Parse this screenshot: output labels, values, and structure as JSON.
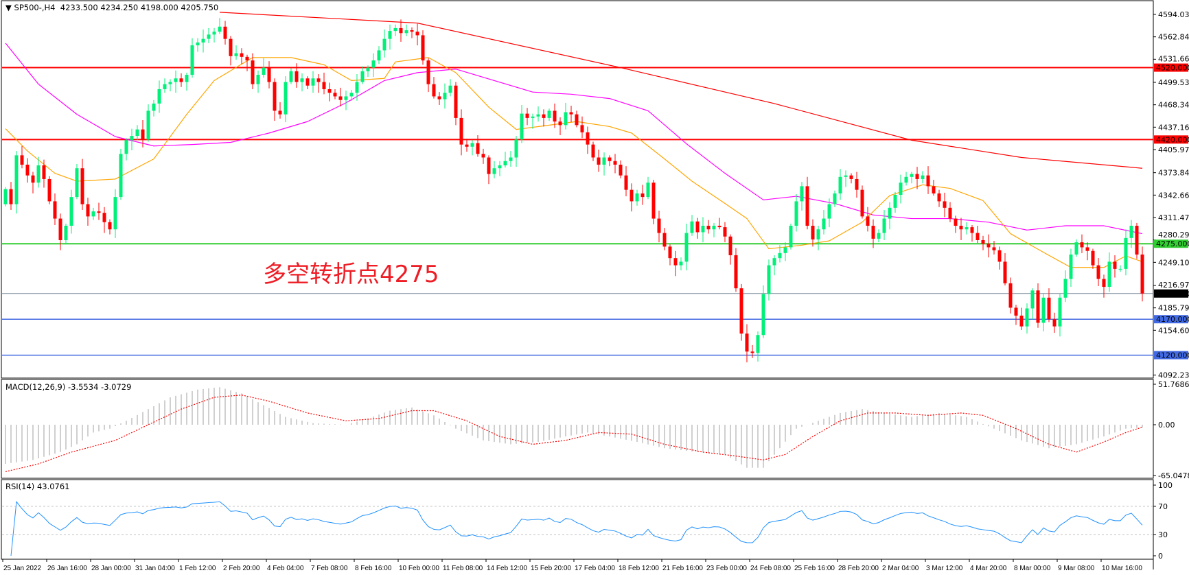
{
  "header": {
    "symbol": "SP500-,H4",
    "ohlc_text": "4233.500 4234.250 4198.000 4205.750"
  },
  "annotation": "多空转折点4275",
  "macd_label": "MACD(12,26,9) -3.5534 -3.0729",
  "rsi_label": "RSI(14) 43.0761",
  "colors": {
    "bull": "#00f07a",
    "bear": "#ff0000",
    "ma_fast": "#ffa500",
    "ma_mid": "#ff00ff",
    "ma_slow": "#ff0000",
    "resistance": "#ff0000",
    "pivot": "#32cd32",
    "support": "#4169e1",
    "price_line": "#778899",
    "macd_hist": "#c0c0c0",
    "macd_signal": "#ff0000",
    "rsi": "#1e90ff"
  },
  "chart_data": {
    "type": "candlestick",
    "price_axis": {
      "min": 4092.235,
      "max": 4594.03,
      "ticks": [
        "4594.030",
        "4562.845",
        "4531.660",
        "4499.530",
        "4468.345",
        "4437.160",
        "4405.975",
        "4373.845",
        "4342.660",
        "4311.475",
        "4280.290",
        "4249.105",
        "4216.975",
        "4185.790",
        "4154.605",
        "4092.235"
      ]
    },
    "time_labels": [
      "25 Jan 2022",
      "26 Jan 16:00",
      "28 Jan 00:00",
      "31 Jan 04:00",
      "1 Feb 12:00",
      "2 Feb 20:00",
      "4 Feb 04:00",
      "7 Feb 08:00",
      "8 Feb 16:00",
      "10 Feb 00:00",
      "11 Feb 08:00",
      "14 Feb 12:00",
      "15 Feb 20:00",
      "17 Feb 04:00",
      "18 Feb 12:00",
      "21 Feb 16:00",
      "23 Feb 00:00",
      "24 Feb 08:00",
      "25 Feb 16:00",
      "28 Feb 20:00",
      "2 Mar 04:00",
      "3 Mar 12:00",
      "4 Mar 20:00",
      "8 Mar 00:00",
      "9 Mar 08:00",
      "10 Mar 16:00"
    ],
    "first_open": 4330,
    "closes": [
      4351,
      4330,
      4398,
      4385,
      4370,
      4360,
      4384,
      4365,
      4334,
      4310,
      4280,
      4300,
      4340,
      4380,
      4330,
      4313,
      4320,
      4318,
      4305,
      4295,
      4340,
      4400,
      4419,
      4425,
      4434,
      4420,
      4460,
      4470,
      4490,
      4497,
      4500,
      4505,
      4500,
      4510,
      4551,
      4555,
      4560,
      4566,
      4570,
      4577,
      4560,
      4536,
      4540,
      4535,
      4530,
      4497,
      4510,
      4520,
      4500,
      4460,
      4455,
      4500,
      4515,
      4500,
      4505,
      4495,
      4505,
      4500,
      4490,
      4485,
      4480,
      4475,
      4480,
      4485,
      4500,
      4515,
      4520,
      4530,
      4544,
      4560,
      4571,
      4575,
      4568,
      4572,
      4570,
      4565,
      4530,
      4497,
      4480,
      4476,
      4485,
      4495,
      4450,
      4413,
      4410,
      4415,
      4400,
      4395,
      4372,
      4380,
      4384,
      4390,
      4395,
      4420,
      4456,
      4450,
      4452,
      4455,
      4450,
      4460,
      4445,
      4440,
      4458,
      4455,
      4440,
      4430,
      4413,
      4395,
      4385,
      4395,
      4390,
      4385,
      4370,
      4350,
      4334,
      4345,
      4340,
      4360,
      4310,
      4290,
      4271,
      4255,
      4245,
      4250,
      4290,
      4306,
      4291,
      4300,
      4295,
      4300,
      4298,
      4285,
      4259,
      4213,
      4150,
      4125,
      4123,
      4148,
      4205,
      4245,
      4255,
      4262,
      4270,
      4300,
      4334,
      4355,
      4300,
      4281,
      4295,
      4310,
      4330,
      4345,
      4368,
      4370,
      4365,
      4350,
      4313,
      4300,
      4282,
      4290,
      4310,
      4325,
      4343,
      4360,
      4368,
      4372,
      4365,
      4370,
      4355,
      4345,
      4334,
      4325,
      4310,
      4300,
      4295,
      4298,
      4290,
      4280,
      4275,
      4270,
      4266,
      4250,
      4220,
      4186,
      4175,
      4160,
      4185,
      4210,
      4165,
      4200,
      4170,
      4160,
      4200,
      4226,
      4260,
      4277,
      4270,
      4265,
      4245,
      4226,
      4215,
      4250,
      4240,
      4240,
      4283,
      4300,
      4260,
      4205.75
    ],
    "ma_fast": [
      [
        0,
        4435
      ],
      [
        4,
        4404
      ],
      [
        9,
        4373
      ],
      [
        13,
        4362
      ],
      [
        20,
        4365
      ],
      [
        27,
        4393
      ],
      [
        33,
        4455
      ],
      [
        38,
        4502
      ],
      [
        45,
        4534
      ],
      [
        52,
        4534
      ],
      [
        58,
        4524
      ],
      [
        63,
        4502
      ],
      [
        69,
        4505
      ],
      [
        71,
        4528
      ],
      [
        77,
        4534
      ],
      [
        82,
        4513
      ],
      [
        88,
        4465
      ],
      [
        93,
        4434
      ],
      [
        99,
        4440
      ],
      [
        104,
        4445
      ],
      [
        110,
        4438
      ],
      [
        114,
        4429
      ],
      [
        120,
        4393
      ],
      [
        125,
        4362
      ],
      [
        131,
        4331
      ],
      [
        135,
        4310
      ],
      [
        139,
        4268
      ],
      [
        145,
        4273
      ],
      [
        150,
        4279
      ],
      [
        156,
        4305
      ],
      [
        161,
        4342
      ],
      [
        167,
        4357
      ],
      [
        172,
        4352
      ],
      [
        178,
        4335
      ],
      [
        183,
        4289
      ],
      [
        189,
        4263
      ],
      [
        194,
        4242
      ],
      [
        200,
        4242
      ],
      [
        204,
        4258
      ],
      [
        207,
        4250
      ]
    ],
    "ma_mid": [
      [
        0,
        4554
      ],
      [
        6,
        4497
      ],
      [
        13,
        4455
      ],
      [
        20,
        4424
      ],
      [
        27,
        4411
      ],
      [
        34,
        4413
      ],
      [
        41,
        4416
      ],
      [
        48,
        4429
      ],
      [
        55,
        4445
      ],
      [
        62,
        4471
      ],
      [
        69,
        4502
      ],
      [
        75,
        4513
      ],
      [
        82,
        4518
      ],
      [
        89,
        4502
      ],
      [
        96,
        4486
      ],
      [
        103,
        4483
      ],
      [
        110,
        4477
      ],
      [
        117,
        4460
      ],
      [
        124,
        4414
      ],
      [
        131,
        4373
      ],
      [
        138,
        4336
      ],
      [
        144,
        4341
      ],
      [
        151,
        4331
      ],
      [
        158,
        4315
      ],
      [
        165,
        4310
      ],
      [
        172,
        4310
      ],
      [
        179,
        4305
      ],
      [
        186,
        4294
      ],
      [
        193,
        4300
      ],
      [
        200,
        4300
      ],
      [
        207,
        4289
      ]
    ],
    "ma_slow": [
      [
        39,
        4597
      ],
      [
        75,
        4582
      ],
      [
        112,
        4520
      ],
      [
        140,
        4470
      ],
      [
        165,
        4419
      ],
      [
        185,
        4395
      ],
      [
        207,
        4380
      ]
    ],
    "levels": [
      {
        "price": 4520,
        "label": "4520.000",
        "kind": "resistance"
      },
      {
        "price": 4420,
        "label": "4420.000",
        "kind": "resistance"
      },
      {
        "price": 4275,
        "label": "4275.000",
        "kind": "pivot"
      },
      {
        "price": 4170,
        "label": "4170.000",
        "kind": "support"
      },
      {
        "price": 4120,
        "label": "4120.000",
        "kind": "support"
      }
    ],
    "current_price": {
      "price": 4205.75,
      "label": "4205.750"
    },
    "macd": {
      "axis": {
        "max": 51.7686,
        "min": -65.0478,
        "ticks": [
          "51.7686",
          "0.00",
          "-65.0478"
        ]
      },
      "main": [
        [
          0,
          -50
        ],
        [
          5,
          -45
        ],
        [
          10,
          -35
        ],
        [
          13,
          -25
        ],
        [
          16,
          -10
        ],
        [
          19,
          -5
        ],
        [
          22,
          5
        ],
        [
          26,
          20
        ],
        [
          30,
          35
        ],
        [
          35,
          45
        ],
        [
          39,
          48
        ],
        [
          43,
          40
        ],
        [
          47,
          25
        ],
        [
          51,
          10
        ],
        [
          56,
          2
        ],
        [
          62,
          0
        ],
        [
          66,
          8
        ],
        [
          70,
          18
        ],
        [
          74,
          22
        ],
        [
          78,
          12
        ],
        [
          82,
          -5
        ],
        [
          87,
          -20
        ],
        [
          92,
          -25
        ],
        [
          97,
          -22
        ],
        [
          102,
          -15
        ],
        [
          106,
          -10
        ],
        [
          110,
          -15
        ],
        [
          115,
          -22
        ],
        [
          120,
          -30
        ],
        [
          126,
          -35
        ],
        [
          131,
          -38
        ],
        [
          135,
          -55
        ],
        [
          138,
          -55
        ],
        [
          141,
          -30
        ],
        [
          144,
          -5
        ],
        [
          148,
          5
        ],
        [
          152,
          15
        ],
        [
          156,
          20
        ],
        [
          160,
          15
        ],
        [
          165,
          10
        ],
        [
          170,
          15
        ],
        [
          175,
          10
        ],
        [
          180,
          -5
        ],
        [
          185,
          -20
        ],
        [
          190,
          -30
        ],
        [
          195,
          -25
        ],
        [
          200,
          -15
        ],
        [
          204,
          -5
        ],
        [
          207,
          -3.5534
        ]
      ],
      "signal": [
        [
          0,
          -60
        ],
        [
          6,
          -50
        ],
        [
          12,
          -35
        ],
        [
          20,
          -20
        ],
        [
          26,
          0
        ],
        [
          32,
          20
        ],
        [
          38,
          35
        ],
        [
          43,
          38
        ],
        [
          48,
          30
        ],
        [
          55,
          15
        ],
        [
          62,
          5
        ],
        [
          68,
          8
        ],
        [
          74,
          18
        ],
        [
          78,
          18
        ],
        [
          84,
          5
        ],
        [
          90,
          -15
        ],
        [
          96,
          -25
        ],
        [
          102,
          -20
        ],
        [
          108,
          -10
        ],
        [
          114,
          -12
        ],
        [
          120,
          -25
        ],
        [
          127,
          -35
        ],
        [
          133,
          -40
        ],
        [
          138,
          -45
        ],
        [
          142,
          -38
        ],
        [
          147,
          -15
        ],
        [
          152,
          5
        ],
        [
          157,
          15
        ],
        [
          162,
          15
        ],
        [
          168,
          12
        ],
        [
          174,
          15
        ],
        [
          178,
          12
        ],
        [
          184,
          -5
        ],
        [
          190,
          -25
        ],
        [
          195,
          -35
        ],
        [
          200,
          -22
        ],
        [
          204,
          -10
        ],
        [
          207,
          -3.0729
        ]
      ]
    },
    "rsi": {
      "period": 14,
      "ticks": [
        "100",
        "70",
        "30",
        "0"
      ],
      "levels": [
        70,
        30
      ]
    }
  }
}
